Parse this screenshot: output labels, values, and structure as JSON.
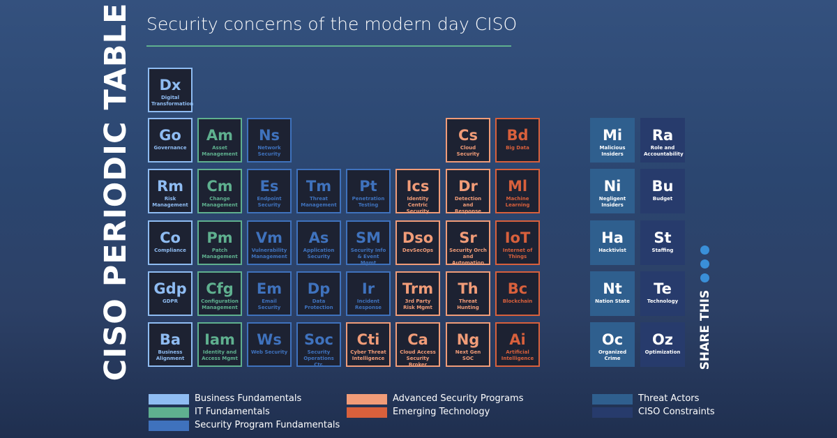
{
  "header": {
    "title": "CISO PERIODIC TABLE",
    "subtitle": "Security concerns of the modern day CISO"
  },
  "share": {
    "label": "SHARE THIS"
  },
  "groups": [
    {
      "label": "Business Fundamentals",
      "color": "#8fbcf2",
      "style": "outline",
      "elements": [
        {
          "symbol": "Dx",
          "name": "Digital Transformation"
        },
        {
          "symbol": "Go",
          "name": "Governance"
        },
        {
          "symbol": "Rm",
          "name": "Risk Management"
        },
        {
          "symbol": "Co",
          "name": "Compliance"
        },
        {
          "symbol": "Gdp",
          "name": "GDPR"
        },
        {
          "symbol": "Ba",
          "name": "Business Alignment"
        }
      ]
    },
    {
      "label": "IT Fundamentals",
      "color": "#5fb08f",
      "style": "outline",
      "elements": [
        {
          "symbol": "Am",
          "name": "Asset Management"
        },
        {
          "symbol": "Cm",
          "name": "Change Management"
        },
        {
          "symbol": "Pm",
          "name": "Patch Management"
        },
        {
          "symbol": "Cfg",
          "name": "Configuration Management"
        },
        {
          "symbol": "Iam",
          "name": "Identity and Access Mgmt"
        }
      ]
    },
    {
      "label": "Security Program Fundamentals",
      "color": "#3f72bd",
      "style": "outline",
      "elements": [
        {
          "symbol": "Ns",
          "name": "Network Security"
        },
        {
          "symbol": "Es",
          "name": "Endpoint Security"
        },
        {
          "symbol": "Tm",
          "name": "Threat Management"
        },
        {
          "symbol": "Pt",
          "name": "Penetration Testing"
        },
        {
          "symbol": "Vm",
          "name": "Vulnerability Management"
        },
        {
          "symbol": "As",
          "name": "Application Security"
        },
        {
          "symbol": "SM",
          "name": "Security Info & Event Mgmt"
        },
        {
          "symbol": "Em",
          "name": "Email Security"
        },
        {
          "symbol": "Dp",
          "name": "Data Protection"
        },
        {
          "symbol": "Ir",
          "name": "Incident Response"
        },
        {
          "symbol": "Ws",
          "name": "Web Security"
        },
        {
          "symbol": "Soc",
          "name": "Security Operations Ctr."
        }
      ]
    },
    {
      "label": "Advanced Security Programs",
      "color": "#f19c78",
      "style": "outline",
      "elements": [
        {
          "symbol": "Cs",
          "name": "Cloud Security"
        },
        {
          "symbol": "Ics",
          "name": "Identity Centric Security"
        },
        {
          "symbol": "Dr",
          "name": "Detection and Response"
        },
        {
          "symbol": "Dso",
          "name": "DevSecOps"
        },
        {
          "symbol": "Sr",
          "name": "Security Orch and Automation"
        },
        {
          "symbol": "Trm",
          "name": "3rd Party Risk Mgmt"
        },
        {
          "symbol": "Th",
          "name": "Threat Hunting"
        },
        {
          "symbol": "Cti",
          "name": "Cyber Threat Intelligence"
        },
        {
          "symbol": "Ca",
          "name": "Cloud Access Security Broker"
        },
        {
          "symbol": "Ng",
          "name": "Next Gen SOC"
        }
      ]
    },
    {
      "label": "Emerging Technology",
      "color": "#d8603c",
      "style": "outline",
      "elements": [
        {
          "symbol": "Bd",
          "name": "Big Data"
        },
        {
          "symbol": "Ml",
          "name": "Machine Learning"
        },
        {
          "symbol": "IoT",
          "name": "Internet of Things"
        },
        {
          "symbol": "Bc",
          "name": "Blockchain"
        },
        {
          "symbol": "Ai",
          "name": "Artificial Intelligence"
        }
      ]
    },
    {
      "label": "Threat Actors",
      "color": "#2f5f8e",
      "style": "filled",
      "elements": [
        {
          "symbol": "Mi",
          "name": "Malicious Insiders"
        },
        {
          "symbol": "Ni",
          "name": "Negligent Insiders"
        },
        {
          "symbol": "Ha",
          "name": "Hacktivist"
        },
        {
          "symbol": "Nt",
          "name": "Nation State"
        },
        {
          "symbol": "Oc",
          "name": "Organized Crime"
        }
      ]
    },
    {
      "label": "CISO Constraints",
      "color": "#273b6c",
      "style": "filled",
      "elements": [
        {
          "symbol": "Ra",
          "name": "Role and Accountability"
        },
        {
          "symbol": "Bu",
          "name": "Budget"
        },
        {
          "symbol": "St",
          "name": "Staffing"
        },
        {
          "symbol": "Te",
          "name": "Technology"
        },
        {
          "symbol": "Oz",
          "name": "Optimization"
        }
      ]
    }
  ]
}
